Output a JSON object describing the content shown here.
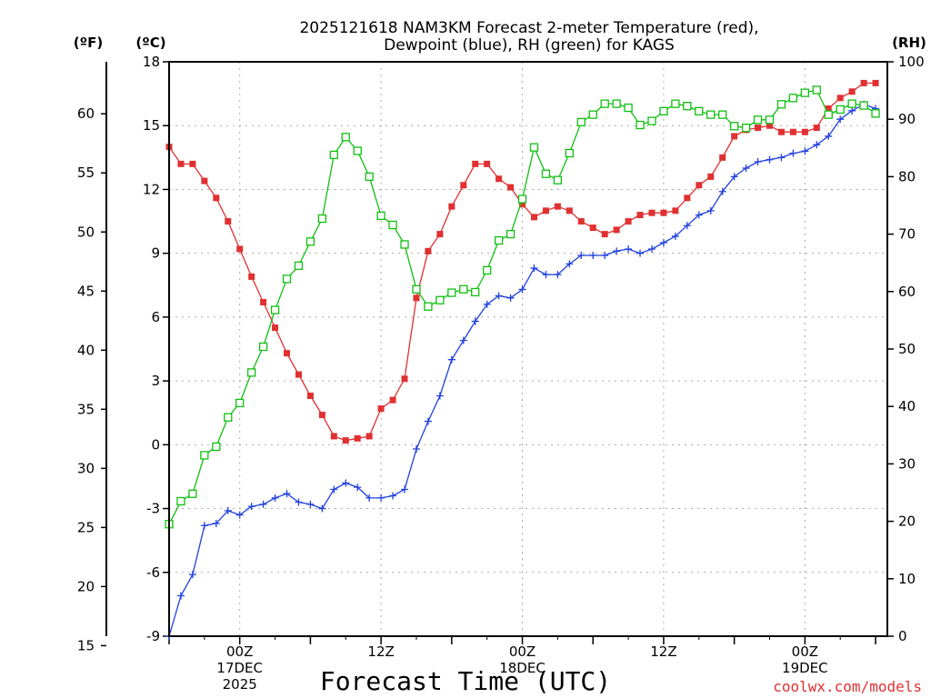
{
  "chart_data": {
    "type": "line",
    "title_lines": [
      "2025121618 NAM3KM Forecast 2-meter Temperature (red),",
      "Dewpoint (blue), RH (green) for KAGS"
    ],
    "unit_labels": {
      "fahrenheit": "(ºF)",
      "celsius": "(ºC)",
      "rh": "(RH)"
    },
    "xlabel": "Forecast Time (UTC)",
    "credit": "coolwx.com/models",
    "x_range_hours": [
      0,
      61
    ],
    "time_ticks": [
      {
        "hour": 6,
        "lines": [
          "00Z",
          "17DEC",
          "2025"
        ]
      },
      {
        "hour": 18,
        "lines": [
          "12Z"
        ]
      },
      {
        "hour": 30,
        "lines": [
          "00Z",
          "18DEC"
        ]
      },
      {
        "hour": 42,
        "lines": [
          "12Z"
        ]
      },
      {
        "hour": 54,
        "lines": [
          "00Z",
          "19DEC"
        ]
      }
    ],
    "y_celsius": {
      "range": [
        -9,
        18
      ],
      "ticks": [
        -9,
        -6,
        -3,
        0,
        3,
        6,
        9,
        12,
        15,
        18
      ]
    },
    "y_fahrenheit": {
      "ticks": [
        15,
        20,
        25,
        30,
        35,
        40,
        45,
        50,
        55,
        60
      ]
    },
    "y_rh": {
      "range": [
        0,
        100
      ],
      "ticks": [
        0,
        10,
        20,
        30,
        40,
        50,
        60,
        70,
        80,
        90,
        100
      ]
    },
    "grid": true,
    "series": [
      {
        "name": "Temperature",
        "unit": "C",
        "color": "#e03030",
        "marker": "filled-square",
        "values": [
          14,
          13.2,
          13.2,
          12.4,
          11.6,
          10.5,
          9.2,
          7.9,
          6.7,
          5.5,
          4.3,
          3.3,
          2.3,
          1.4,
          0.4,
          0.2,
          0.3,
          0.4,
          1.7,
          2.1,
          3.1,
          6.9,
          9.1,
          9.9,
          11.2,
          12.2,
          13.2,
          13.2,
          12.5,
          12.1,
          11.3,
          10.7,
          11,
          11.2,
          11,
          10.5,
          10.2,
          9.9,
          10.1,
          10.5,
          10.8,
          10.9,
          10.9,
          11,
          11.6,
          12.2,
          12.6,
          13.5,
          14.5,
          14.8,
          14.9,
          15,
          14.7,
          14.7,
          14.7,
          14.9,
          15.8,
          16.3,
          16.6,
          17,
          17
        ]
      },
      {
        "name": "Dewpoint",
        "unit": "C",
        "color": "#2040e0",
        "marker": "plus",
        "values": [
          -9,
          -7.1,
          -6.1,
          -3.8,
          -3.7,
          -3.1,
          -3.3,
          -2.9,
          -2.8,
          -2.5,
          -2.3,
          -2.7,
          -2.8,
          -3,
          -2.1,
          -1.8,
          -2,
          -2.5,
          -2.5,
          -2.4,
          -2.1,
          -0.2,
          1.1,
          2.3,
          4,
          4.9,
          5.8,
          6.6,
          7,
          6.9,
          7.3,
          8.3,
          8,
          8,
          8.5,
          8.9,
          8.9,
          8.9,
          9.1,
          9.2,
          9,
          9.2,
          9.5,
          9.8,
          10.3,
          10.8,
          11,
          11.9,
          12.6,
          13,
          13.3,
          13.4,
          13.5,
          13.7,
          13.8,
          14.1,
          14.5,
          15.3,
          15.7,
          16,
          15.8
        ]
      },
      {
        "name": "RH",
        "unit": "%",
        "color": "#10c010",
        "marker": "open-square",
        "values": [
          19.5,
          23.5,
          24.8,
          31.5,
          33,
          38.1,
          40.6,
          45.9,
          50.4,
          56.8,
          62.2,
          64.5,
          68.7,
          72.7,
          83.8,
          86.9,
          84.5,
          80,
          73.2,
          71.6,
          68.2,
          60.4,
          57.4,
          58.5,
          59.8,
          60.4,
          59.9,
          63.7,
          68.9,
          70,
          76.1,
          85.1,
          80.5,
          79.4,
          84.1,
          89.5,
          90.8,
          92.7,
          92.7,
          92,
          89,
          89.7,
          91.4,
          92.7,
          92.3,
          91.4,
          90.8,
          90.8,
          88.8,
          88.5,
          89.9,
          89.9,
          92.6,
          93.7,
          94.6,
          95.1,
          90.8,
          91.7,
          92.7,
          92.4,
          91
        ]
      }
    ]
  }
}
